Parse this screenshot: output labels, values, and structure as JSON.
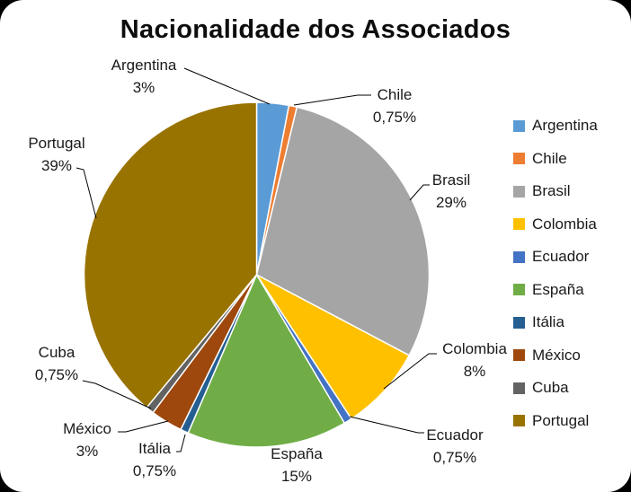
{
  "frame": {
    "background_color": "#000000",
    "card_color": "#ffffff"
  },
  "chart_data": {
    "type": "pie",
    "title": "Nacionalidade dos Associados",
    "categories": [
      "Argentina",
      "Chile",
      "Brasil",
      "Colombia",
      "Ecuador",
      "España",
      "Itália",
      "México",
      "Cuba",
      "Portugal"
    ],
    "values": [
      3,
      0.75,
      29,
      8,
      0.75,
      15,
      0.75,
      3,
      0.75,
      39
    ],
    "value_labels": [
      "3%",
      "0,75%",
      "29%",
      "8%",
      "0,75%",
      "15%",
      "0,75%",
      "3%",
      "0,75%",
      "39%"
    ],
    "colors": [
      "#5B9BD5",
      "#ED7D31",
      "#A5A5A5",
      "#FFC000",
      "#4472C4",
      "#70AD47",
      "#255E91",
      "#9E480E",
      "#636363",
      "#997300"
    ],
    "legend_position": "right",
    "label_style": "category-name-with-percent-outside",
    "leader_line_color": "#000000"
  }
}
